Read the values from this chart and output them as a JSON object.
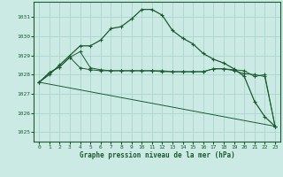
{
  "title": "Graphe pression niveau de la mer (hPa)",
  "bg_color": "#cceae4",
  "grid_color": "#b0d8d0",
  "line_color": "#1a5c30",
  "xlim": [
    -0.5,
    23.5
  ],
  "ylim": [
    1024.5,
    1031.8
  ],
  "yticks": [
    1025,
    1026,
    1027,
    1028,
    1029,
    1030,
    1031
  ],
  "xticks": [
    0,
    1,
    2,
    3,
    4,
    5,
    6,
    7,
    8,
    9,
    10,
    11,
    12,
    13,
    14,
    15,
    16,
    17,
    18,
    19,
    20,
    21,
    22,
    23
  ],
  "line1_x": [
    0,
    1,
    2,
    3,
    4,
    5,
    6,
    7,
    8,
    9,
    10,
    11,
    12,
    13,
    14,
    15,
    16,
    17,
    18,
    19,
    20,
    21,
    22,
    23
  ],
  "line1_y": [
    1027.6,
    1028.0,
    1028.5,
    1029.0,
    1029.5,
    1029.5,
    1029.8,
    1030.4,
    1030.5,
    1030.9,
    1031.4,
    1031.4,
    1031.1,
    1030.3,
    1029.9,
    1029.6,
    1029.1,
    1028.8,
    1028.6,
    1028.3,
    1027.9,
    1026.6,
    1025.8,
    1025.3
  ],
  "line2_x": [
    0,
    1,
    2,
    3,
    4,
    5,
    6,
    7,
    8,
    9,
    10,
    11,
    12,
    13,
    14,
    15,
    16,
    17,
    18,
    19,
    20,
    21,
    22,
    23
  ],
  "line2_y": [
    1027.6,
    1028.1,
    1028.4,
    1028.9,
    1029.2,
    1028.35,
    1028.25,
    1028.2,
    1028.2,
    1028.2,
    1028.2,
    1028.2,
    1028.2,
    1028.15,
    1028.15,
    1028.15,
    1028.15,
    1028.3,
    1028.3,
    1028.25,
    1028.2,
    1027.9,
    1028.0,
    1025.3
  ],
  "line3_x": [
    0,
    1,
    2,
    3,
    4,
    5,
    6,
    7,
    8,
    9,
    10,
    11,
    12,
    13,
    14,
    15,
    16,
    17,
    18,
    19,
    20,
    21,
    22,
    23
  ],
  "line3_y": [
    1027.6,
    1028.1,
    1028.4,
    1028.9,
    1028.35,
    1028.25,
    1028.2,
    1028.2,
    1028.2,
    1028.2,
    1028.2,
    1028.2,
    1028.15,
    1028.15,
    1028.15,
    1028.15,
    1028.15,
    1028.3,
    1028.3,
    1028.2,
    1028.05,
    1028.0,
    1027.9,
    1025.3
  ],
  "line4_x": [
    0,
    23
  ],
  "line4_y": [
    1027.6,
    1025.3
  ]
}
